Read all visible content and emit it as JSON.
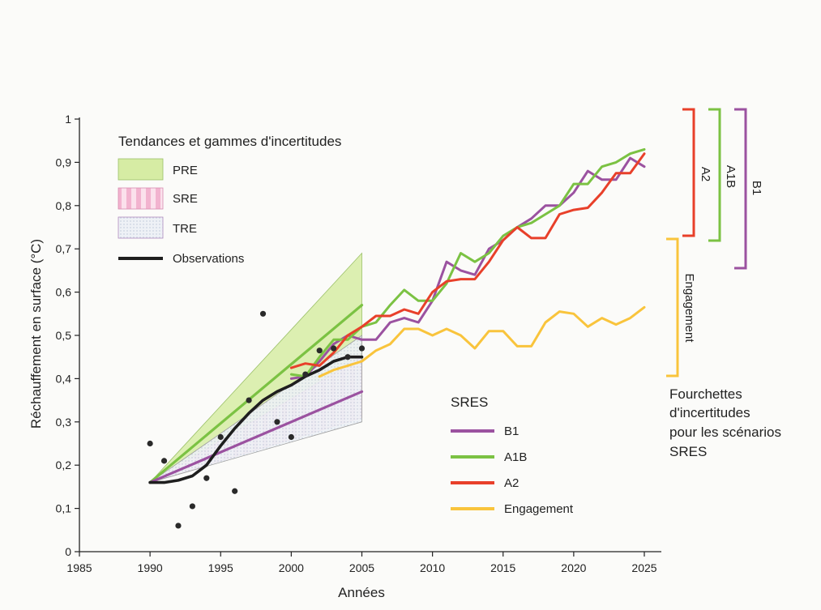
{
  "chart_data": {
    "type": "line",
    "xlabel": "Années",
    "ylabel": "Réchauffement en surface (°C)",
    "xlim": [
      1985,
      2025
    ],
    "ylim": [
      0,
      1
    ],
    "x_ticks": [
      1985,
      1990,
      1995,
      2000,
      2005,
      2010,
      2015,
      2020,
      2025
    ],
    "y_ticks": [
      0,
      0.1,
      0.2,
      0.3,
      0.4,
      0.5,
      0.6,
      0.7,
      0.8,
      0.9,
      1
    ],
    "y_tick_labels": [
      "0",
      "0,1",
      "0,2",
      "0,3",
      "0,4",
      "0,5",
      "0,6",
      "0,7",
      "0,8",
      "0,9",
      "1"
    ],
    "legend_trends": {
      "title": "Tendances et gammes d'incertitudes",
      "items": [
        {
          "key": "pre",
          "label": "PRE",
          "color": "#d6eca4"
        },
        {
          "key": "sre",
          "label": "SRE",
          "color": "#f4bcd6"
        },
        {
          "key": "tre",
          "label": "TRE",
          "color": "#dfe6f0"
        },
        {
          "key": "obs",
          "label": "Observations",
          "color": "#1e1e1e"
        }
      ]
    },
    "legend_sres": {
      "title": "SRES",
      "items": [
        {
          "key": "B1",
          "label": "B1",
          "color": "#9b52a0"
        },
        {
          "key": "A1B",
          "label": "A1B",
          "color": "#7bc243"
        },
        {
          "key": "A2",
          "label": "A2",
          "color": "#e8402a"
        },
        {
          "key": "Engagement",
          "label": "Engagement",
          "color": "#f9c43c"
        }
      ]
    },
    "uncertainty_wedges": [
      {
        "name": "PRE",
        "color": "#d6eca4",
        "x": [
          1990,
          2005
        ],
        "low": [
          0.16,
          0.4
        ],
        "mid": [
          0.16,
          0.57
        ],
        "high": [
          0.16,
          0.69
        ]
      },
      {
        "name": "SRE",
        "color": "#f4bcd6",
        "x": [
          1990,
          2005
        ],
        "low": [
          0.16,
          0.31
        ],
        "mid": [
          0.16,
          0.37
        ],
        "high": [
          0.16,
          0.45
        ]
      },
      {
        "name": "TRE",
        "color": "#dfe6f0",
        "x": [
          1990,
          2005
        ],
        "low": [
          0.16,
          0.3
        ],
        "mid": [
          0.16,
          0.37
        ],
        "high": [
          0.16,
          0.5
        ]
      }
    ],
    "trend_lines": [
      {
        "name": "PRE",
        "color": "#7bc243",
        "x": [
          1990,
          2005
        ],
        "y": [
          0.16,
          0.57
        ]
      },
      {
        "name": "SRE",
        "color": "#9b52a0",
        "x": [
          1990,
          2005
        ],
        "y": [
          0.16,
          0.37
        ]
      }
    ],
    "series": [
      {
        "name": "Observations",
        "color": "#1e1e1e",
        "x": [
          1990,
          1991,
          1992,
          1993,
          1994,
          1995,
          1996,
          1997,
          1998,
          1999,
          2000,
          2001,
          2002,
          2003,
          2004,
          2005
        ],
        "y": [
          0.16,
          0.16,
          0.165,
          0.175,
          0.2,
          0.245,
          0.285,
          0.32,
          0.35,
          0.37,
          0.385,
          0.405,
          0.42,
          0.44,
          0.45,
          0.45
        ]
      },
      {
        "name": "B1",
        "color": "#9b52a0",
        "x": [
          2000,
          2001,
          2002,
          2003,
          2004,
          2005,
          2006,
          2007,
          2008,
          2009,
          2010,
          2011,
          2012,
          2013,
          2014,
          2015,
          2016,
          2017,
          2018,
          2019,
          2020,
          2021,
          2022,
          2023,
          2024,
          2025
        ],
        "y": [
          0.4,
          0.405,
          0.44,
          0.48,
          0.5,
          0.49,
          0.49,
          0.53,
          0.54,
          0.53,
          0.58,
          0.67,
          0.65,
          0.64,
          0.7,
          0.72,
          0.75,
          0.77,
          0.8,
          0.8,
          0.83,
          0.88,
          0.86,
          0.86,
          0.91,
          0.89
        ]
      },
      {
        "name": "A1B",
        "color": "#7bc243",
        "x": [
          2000,
          2001,
          2002,
          2003,
          2004,
          2005,
          2006,
          2007,
          2008,
          2009,
          2010,
          2011,
          2012,
          2013,
          2014,
          2015,
          2016,
          2017,
          2018,
          2019,
          2020,
          2021,
          2022,
          2023,
          2024,
          2025
        ],
        "y": [
          0.41,
          0.405,
          0.45,
          0.49,
          0.49,
          0.52,
          0.53,
          0.57,
          0.605,
          0.58,
          0.58,
          0.62,
          0.69,
          0.67,
          0.69,
          0.73,
          0.75,
          0.76,
          0.78,
          0.8,
          0.85,
          0.85,
          0.89,
          0.9,
          0.92,
          0.93
        ]
      },
      {
        "name": "A2",
        "color": "#e8402a",
        "x": [
          2000,
          2001,
          2002,
          2003,
          2004,
          2005,
          2006,
          2007,
          2008,
          2009,
          2010,
          2011,
          2012,
          2013,
          2014,
          2015,
          2016,
          2017,
          2018,
          2019,
          2020,
          2021,
          2022,
          2023,
          2024,
          2025
        ],
        "y": [
          0.425,
          0.435,
          0.43,
          0.46,
          0.5,
          0.52,
          0.545,
          0.545,
          0.56,
          0.55,
          0.6,
          0.625,
          0.63,
          0.63,
          0.67,
          0.72,
          0.75,
          0.725,
          0.725,
          0.78,
          0.79,
          0.795,
          0.83,
          0.875,
          0.875,
          0.92
        ]
      },
      {
        "name": "Engagement",
        "color": "#f9c43c",
        "x": [
          2002,
          2003,
          2004,
          2005,
          2006,
          2007,
          2008,
          2009,
          2010,
          2011,
          2012,
          2013,
          2014,
          2015,
          2016,
          2017,
          2018,
          2019,
          2020,
          2021,
          2022,
          2023,
          2024,
          2025
        ],
        "y": [
          0.405,
          0.42,
          0.43,
          0.44,
          0.465,
          0.48,
          0.515,
          0.515,
          0.5,
          0.515,
          0.5,
          0.47,
          0.51,
          0.51,
          0.475,
          0.475,
          0.53,
          0.555,
          0.55,
          0.52,
          0.54,
          0.525,
          0.54,
          0.565
        ]
      }
    ],
    "observation_points": {
      "x": [
        1990,
        1991,
        1992,
        1993,
        1994,
        1995,
        1996,
        1997,
        1998,
        1999,
        2000,
        2001,
        2002,
        2003,
        2004,
        2005
      ],
      "y": [
        0.25,
        0.21,
        0.06,
        0.105,
        0.17,
        0.265,
        0.14,
        0.35,
        0.55,
        0.3,
        0.265,
        0.41,
        0.465,
        0.47,
        0.45,
        0.47
      ]
    },
    "uncertainty_ranges": {
      "items": [
        {
          "label": "A2",
          "color": "#e8402a",
          "low": 0.73,
          "high": 1.0
        },
        {
          "label": "A1B",
          "color": "#7bc243",
          "low": 0.72,
          "high": 1.0
        },
        {
          "label": "B1",
          "color": "#9b52a0",
          "low": 0.65,
          "high": 1.0
        },
        {
          "label": "Engagement",
          "color": "#f9c43c",
          "low": 0.41,
          "high": 0.72
        }
      ],
      "caption": [
        "Fourchettes",
        "d'incertitudes",
        "pour les scénarios",
        "SRES"
      ]
    }
  }
}
